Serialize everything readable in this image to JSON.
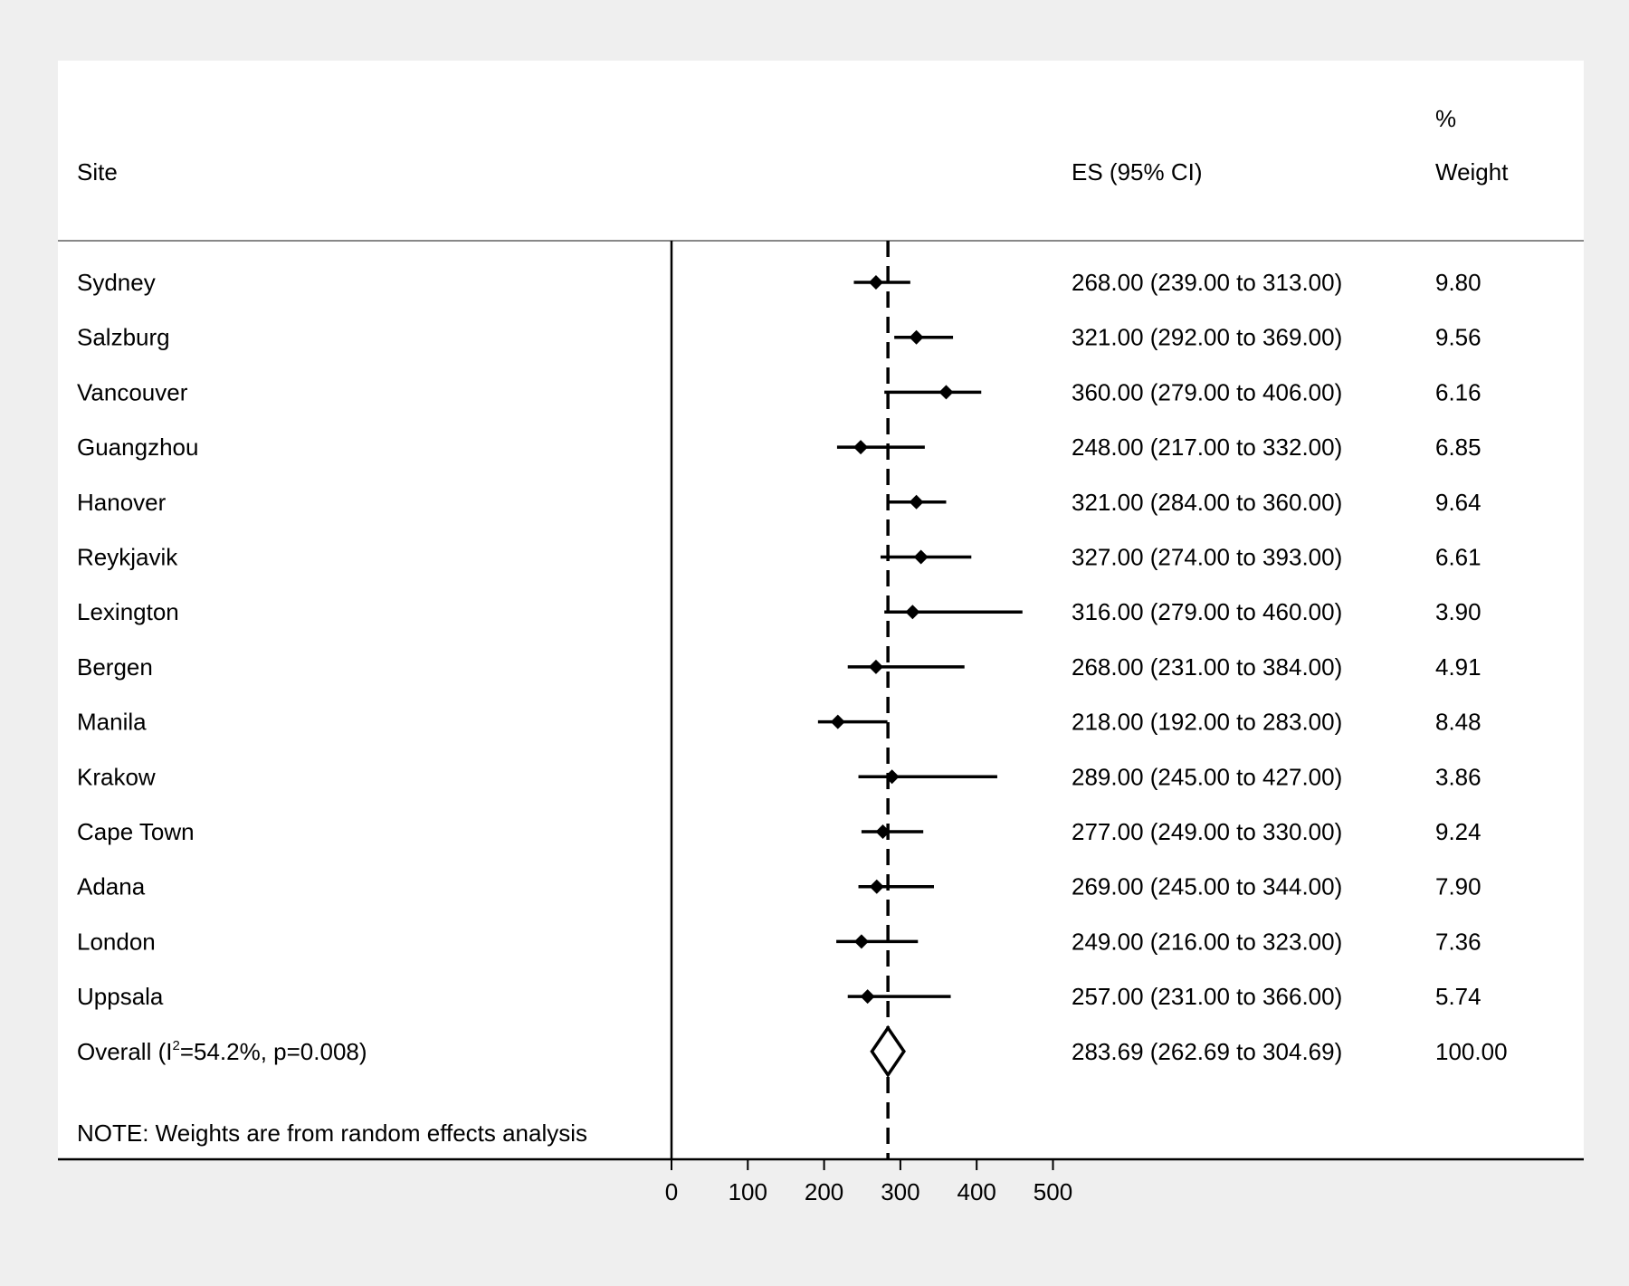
{
  "chart_data": {
    "type": "forest",
    "headers": {
      "site": "Site",
      "es": "ES (95% CI)",
      "weight_top": "%",
      "weight": "Weight"
    },
    "studies": [
      {
        "site": "Sydney",
        "es": 268.0,
        "lo": 239.0,
        "hi": 313.0,
        "es_text": "268.00 (239.00 to 313.00)",
        "weight": "9.80"
      },
      {
        "site": "Salzburg",
        "es": 321.0,
        "lo": 292.0,
        "hi": 369.0,
        "es_text": "321.00 (292.00 to 369.00)",
        "weight": "9.56"
      },
      {
        "site": "Vancouver",
        "es": 360.0,
        "lo": 279.0,
        "hi": 406.0,
        "es_text": "360.00 (279.00 to 406.00)",
        "weight": "6.16"
      },
      {
        "site": "Guangzhou",
        "es": 248.0,
        "lo": 217.0,
        "hi": 332.0,
        "es_text": "248.00 (217.00 to 332.00)",
        "weight": "6.85"
      },
      {
        "site": "Hanover",
        "es": 321.0,
        "lo": 284.0,
        "hi": 360.0,
        "es_text": "321.00 (284.00 to 360.00)",
        "weight": "9.64"
      },
      {
        "site": "Reykjavik",
        "es": 327.0,
        "lo": 274.0,
        "hi": 393.0,
        "es_text": "327.00 (274.00 to 393.00)",
        "weight": "6.61"
      },
      {
        "site": "Lexington",
        "es": 316.0,
        "lo": 279.0,
        "hi": 460.0,
        "es_text": "316.00 (279.00 to 460.00)",
        "weight": "3.90"
      },
      {
        "site": "Bergen",
        "es": 268.0,
        "lo": 231.0,
        "hi": 384.0,
        "es_text": "268.00 (231.00 to 384.00)",
        "weight": "4.91"
      },
      {
        "site": "Manila",
        "es": 218.0,
        "lo": 192.0,
        "hi": 283.0,
        "es_text": "218.00 (192.00 to 283.00)",
        "weight": "8.48"
      },
      {
        "site": "Krakow",
        "es": 289.0,
        "lo": 245.0,
        "hi": 427.0,
        "es_text": "289.00 (245.00 to 427.00)",
        "weight": "3.86"
      },
      {
        "site": "Cape Town",
        "es": 277.0,
        "lo": 249.0,
        "hi": 330.0,
        "es_text": "277.00 (249.00 to 330.00)",
        "weight": "9.24"
      },
      {
        "site": "Adana",
        "es": 269.0,
        "lo": 245.0,
        "hi": 344.0,
        "es_text": "269.00 (245.00 to 344.00)",
        "weight": "7.90"
      },
      {
        "site": "London",
        "es": 249.0,
        "lo": 216.0,
        "hi": 323.0,
        "es_text": "249.00 (216.00 to 323.00)",
        "weight": "7.36"
      },
      {
        "site": "Uppsala",
        "es": 257.0,
        "lo": 231.0,
        "hi": 366.0,
        "es_text": "257.00 (231.00 to 366.00)",
        "weight": "5.74"
      }
    ],
    "overall": {
      "label_pre": "Overall  (I",
      "label_sup": "2",
      "label_post": "=54.2%, p=0.008)",
      "es": 283.69,
      "lo": 262.69,
      "hi": 304.69,
      "es_text": "283.69 (262.69 to 304.69)",
      "weight": "100.00"
    },
    "note": "NOTE: Weights are from random effects analysis",
    "x_ticks": [
      0,
      100,
      200,
      300,
      400,
      500
    ],
    "reference_line": 283.69
  }
}
